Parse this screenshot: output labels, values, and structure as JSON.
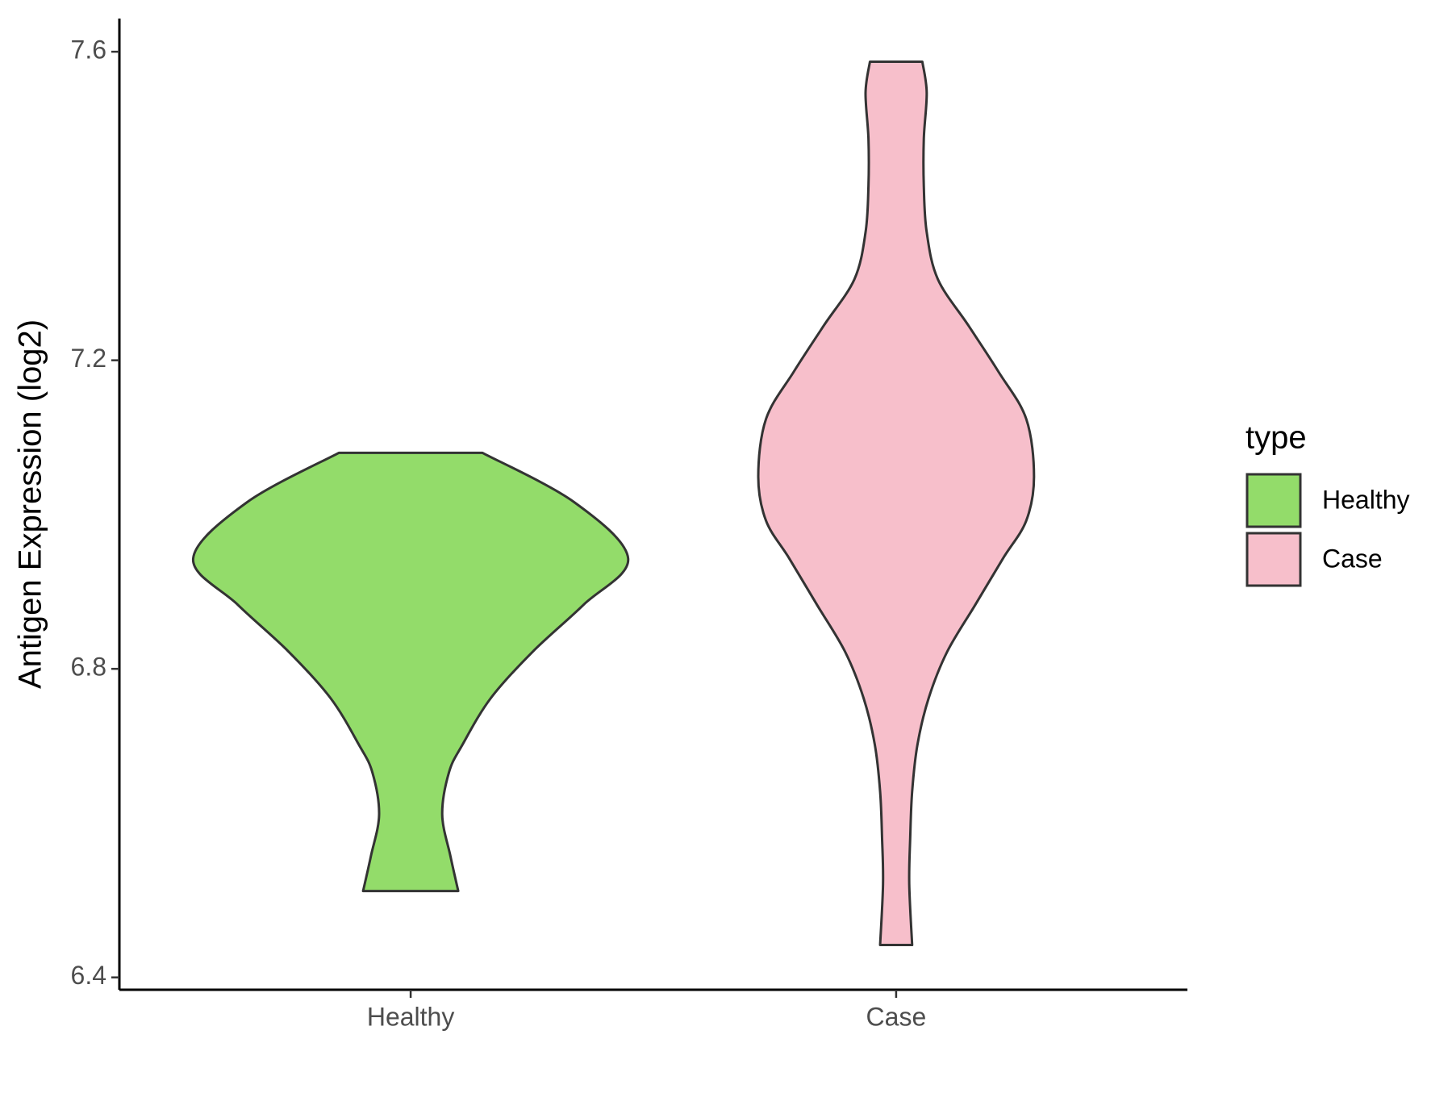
{
  "chart_data": {
    "type": "violin",
    "ylabel": "Antigen Expression (log2)",
    "categories": [
      "Healthy",
      "Case"
    ],
    "legend_title": "type",
    "ylim": [
      6.384,
      7.643
    ],
    "yticks": [
      6.4,
      6.8,
      7.2,
      7.6
    ],
    "series": [
      {
        "name": "Healthy",
        "color": "#93dc6a",
        "y": [
          7.08,
          7.016,
          6.943,
          6.883,
          6.822,
          6.762,
          6.702,
          6.666,
          6.611,
          6.557,
          6.512
        ],
        "half_widths": [
          0.148,
          0.337,
          0.448,
          0.356,
          0.251,
          0.165,
          0.107,
          0.079,
          0.065,
          0.082,
          0.098
        ]
      },
      {
        "name": "Case",
        "color": "#f7bfcb",
        "y": [
          7.587,
          7.547,
          7.487,
          7.426,
          7.366,
          7.305,
          7.245,
          7.185,
          7.124,
          7.049,
          6.992,
          6.943,
          6.883,
          6.822,
          6.762,
          6.702,
          6.641,
          6.581,
          6.521,
          6.442
        ],
        "half_widths": [
          0.054,
          0.063,
          0.057,
          0.057,
          0.063,
          0.086,
          0.149,
          0.211,
          0.268,
          0.284,
          0.268,
          0.22,
          0.163,
          0.105,
          0.067,
          0.044,
          0.033,
          0.029,
          0.027,
          0.033
        ]
      }
    ]
  }
}
